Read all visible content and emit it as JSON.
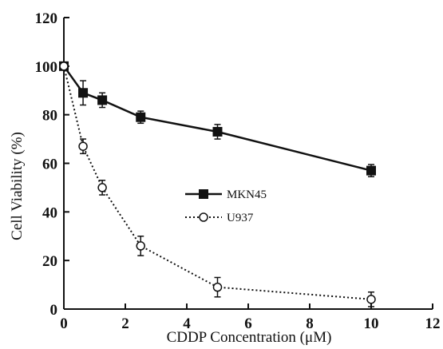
{
  "chart_data": {
    "type": "line",
    "xlabel": "CDDP Concentration (μM)",
    "ylabel": "Cell Viability (%)",
    "xlim": [
      0,
      12
    ],
    "ylim": [
      0,
      120
    ],
    "xticks": [
      "0",
      "2",
      "4",
      "6",
      "8",
      "10",
      "12"
    ],
    "yticks": [
      "0",
      "20",
      "40",
      "60",
      "80",
      "100",
      "120"
    ],
    "grid": false,
    "legend_position": "center",
    "series": [
      {
        "name": "MKN45",
        "marker": "filled-square",
        "line_style": "solid",
        "x": [
          0,
          0.625,
          1.25,
          2.5,
          5,
          10
        ],
        "y": [
          100,
          89,
          86,
          79,
          73,
          57
        ],
        "error": [
          0,
          5,
          3,
          2.5,
          3,
          2.5
        ]
      },
      {
        "name": "U937",
        "marker": "open-circle",
        "line_style": "dotted",
        "x": [
          0,
          0.625,
          1.25,
          2.5,
          5,
          10
        ],
        "y": [
          100,
          67,
          50,
          26,
          9,
          4
        ],
        "error": [
          0,
          3,
          3,
          4,
          4,
          3
        ]
      }
    ]
  }
}
